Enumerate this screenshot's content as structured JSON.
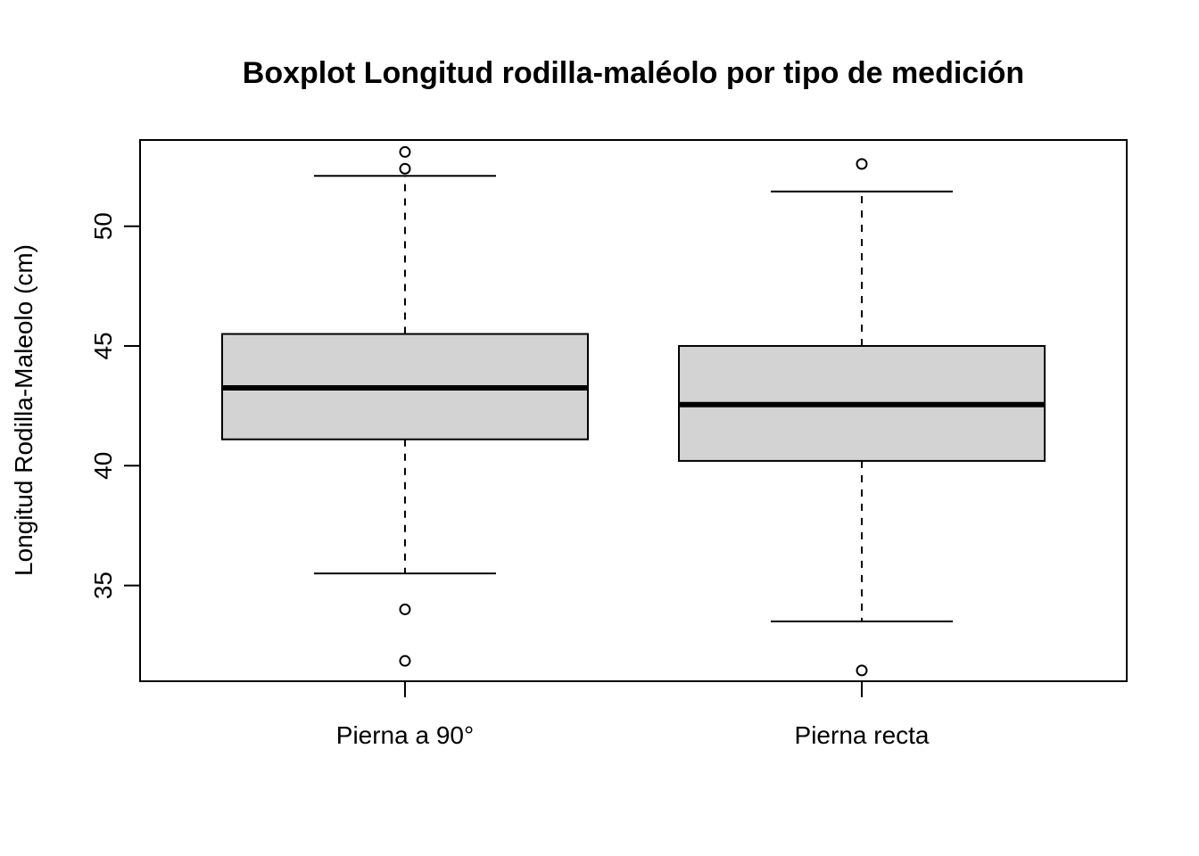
{
  "chart_data": {
    "type": "boxplot",
    "title": "Boxplot Longitud rodilla-maléolo por tipo de medición",
    "xlabel": "",
    "ylabel": "Longitud Rodilla-Maleolo (cm)",
    "ylim": [
      31.0,
      53.6
    ],
    "yticks": [
      35,
      40,
      45,
      50
    ],
    "categories": [
      "Pierna a 90°",
      "Pierna recta"
    ],
    "boxes": [
      {
        "category": "Pierna a 90°",
        "whisker_low": 35.5,
        "q1": 41.1,
        "median": 43.25,
        "q3": 45.5,
        "whisker_high": 52.1,
        "outliers": [
          53.1,
          52.4,
          34.0,
          31.85
        ]
      },
      {
        "category": "Pierna recta",
        "whisker_low": 33.5,
        "q1": 40.2,
        "median": 42.55,
        "q3": 45.0,
        "whisker_high": 51.45,
        "outliers": [
          52.6,
          31.45
        ]
      }
    ],
    "grid": false,
    "colors": {
      "box_fill": "#d3d3d3",
      "stroke": "#000000"
    }
  }
}
